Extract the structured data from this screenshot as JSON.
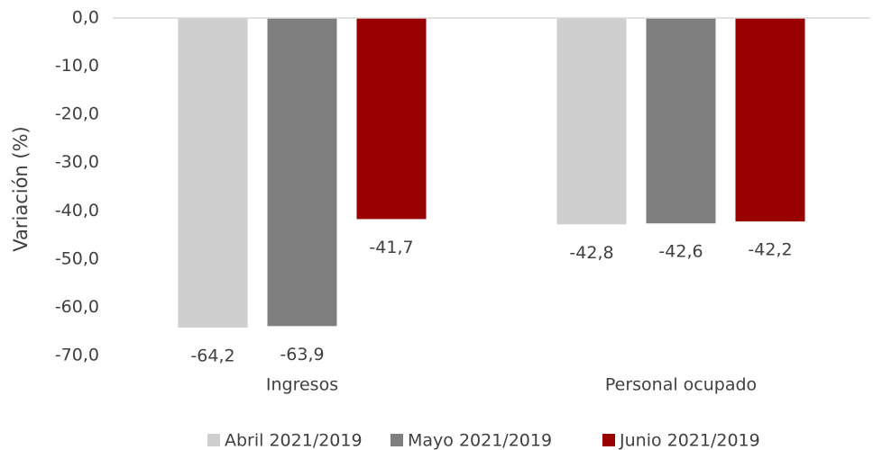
{
  "chart_data": {
    "type": "bar",
    "y_label": "Variación (%)",
    "categories": [
      "Ingresos",
      "Personal ocupado"
    ],
    "series": [
      {
        "name": "Abril 2021/2019",
        "color": "#d0cfd0",
        "values": [
          -64.2,
          -42.8
        ],
        "value_labels": [
          "-64,2",
          "-42,8"
        ]
      },
      {
        "name": "Mayo 2021/2019",
        "color": "#7f7f7f",
        "values": [
          -63.9,
          -42.6
        ],
        "value_labels": [
          "-63,9",
          "-42,6"
        ]
      },
      {
        "name": "Junio 2021/2019",
        "color": "#990000",
        "values": [
          -41.7,
          -42.2
        ],
        "value_labels": [
          "-41,7",
          "-42,2"
        ]
      }
    ],
    "ylim": [
      -70,
      0
    ],
    "yticks": [
      {
        "value": 0,
        "label": "0,0"
      },
      {
        "value": -10,
        "label": "-10,0"
      },
      {
        "value": -20,
        "label": "-20,0"
      },
      {
        "value": -30,
        "label": "-30,0"
      },
      {
        "value": -40,
        "label": "-40,0"
      },
      {
        "value": -50,
        "label": "-50,0"
      },
      {
        "value": -60,
        "label": "-60,0"
      },
      {
        "value": -70,
        "label": "-70,0"
      }
    ],
    "grid": false,
    "legend": "bottom"
  }
}
